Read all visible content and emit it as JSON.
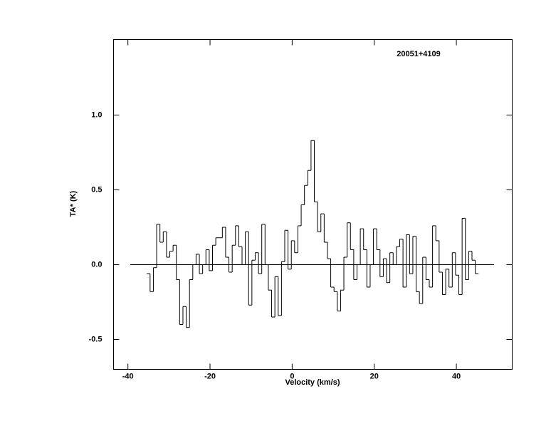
{
  "chart_data": {
    "type": "step",
    "title": "20051+4109",
    "xlabel": "Velocity (km/s)",
    "ylabel": "TA* (K)",
    "xlim": [
      -43.5,
      53.6
    ],
    "ylim": [
      -0.7,
      1.505
    ],
    "xticks": [
      -40,
      -20,
      0,
      20,
      40
    ],
    "yticks": [
      -0.5,
      {
        "value": 0,
        "label": "0.0"
      },
      0.5,
      {
        "value": 1,
        "label": "1.0"
      }
    ],
    "color": "#000000",
    "x": [
      -35.0,
      -34.2,
      -33.4,
      -32.6,
      -31.8,
      -31.0,
      -30.2,
      -29.4,
      -28.6,
      -27.8,
      -27.0,
      -26.2,
      -25.4,
      -24.6,
      -23.8,
      -23.0,
      -22.2,
      -21.4,
      -20.6,
      -19.8,
      -19.0,
      -18.2,
      -17.4,
      -16.6,
      -15.8,
      -15.0,
      -14.2,
      -13.4,
      -12.6,
      -11.8,
      -11.0,
      -10.2,
      -9.4,
      -8.6,
      -7.8,
      -7.0,
      -6.2,
      -5.4,
      -4.6,
      -3.8,
      -3.0,
      -2.2,
      -1.4,
      -0.6,
      0.2,
      1.0,
      1.8,
      2.6,
      3.4,
      4.2,
      5.0,
      5.8,
      6.6,
      7.4,
      8.2,
      9.0,
      9.8,
      10.6,
      11.4,
      12.2,
      13.0,
      13.8,
      14.6,
      15.4,
      16.2,
      17.0,
      17.8,
      18.6,
      19.4,
      20.2,
      21.0,
      21.8,
      22.6,
      23.4,
      24.2,
      25.0,
      25.8,
      26.6,
      27.4,
      28.2,
      29.0,
      29.8,
      30.6,
      31.4,
      32.2,
      33.0,
      33.8,
      34.6,
      35.4,
      36.2,
      37.0,
      37.8,
      38.6,
      39.4,
      40.2,
      41.0,
      41.8,
      42.6,
      43.4,
      44.2,
      45.0
    ],
    "values": [
      -0.06,
      -0.18,
      -0.02,
      0.27,
      0.15,
      0.22,
      0.05,
      0.09,
      0.13,
      -0.1,
      -0.4,
      -0.28,
      -0.42,
      -0.1,
      0.0,
      0.07,
      -0.06,
      0.0,
      0.1,
      -0.04,
      0.13,
      0.18,
      0.18,
      0.25,
      0.05,
      -0.05,
      0.13,
      0.26,
      0.12,
      0.0,
      0.22,
      -0.27,
      0.03,
      0.08,
      -0.06,
      0.27,
      0.0,
      -0.17,
      -0.35,
      -0.08,
      -0.34,
      0.02,
      0.23,
      -0.03,
      0.16,
      0.08,
      0.26,
      0.4,
      0.53,
      0.63,
      0.83,
      0.42,
      0.22,
      0.34,
      0.15,
      0.04,
      -0.15,
      -0.18,
      -0.31,
      -0.17,
      0.05,
      0.28,
      0.1,
      -0.1,
      0.0,
      0.24,
      0.1,
      -0.15,
      0.0,
      0.24,
      0.1,
      -0.08,
      0.04,
      -0.12,
      0.08,
      0.0,
      0.12,
      0.17,
      -0.15,
      0.2,
      -0.06,
      0.19,
      -0.18,
      -0.26,
      0.05,
      -0.1,
      -0.15,
      0.26,
      0.16,
      -0.05,
      -0.2,
      -0.03,
      -0.15,
      0.08,
      -0.07,
      -0.2,
      0.31,
      -0.1,
      0.09,
      0.03,
      -0.06
    ]
  }
}
